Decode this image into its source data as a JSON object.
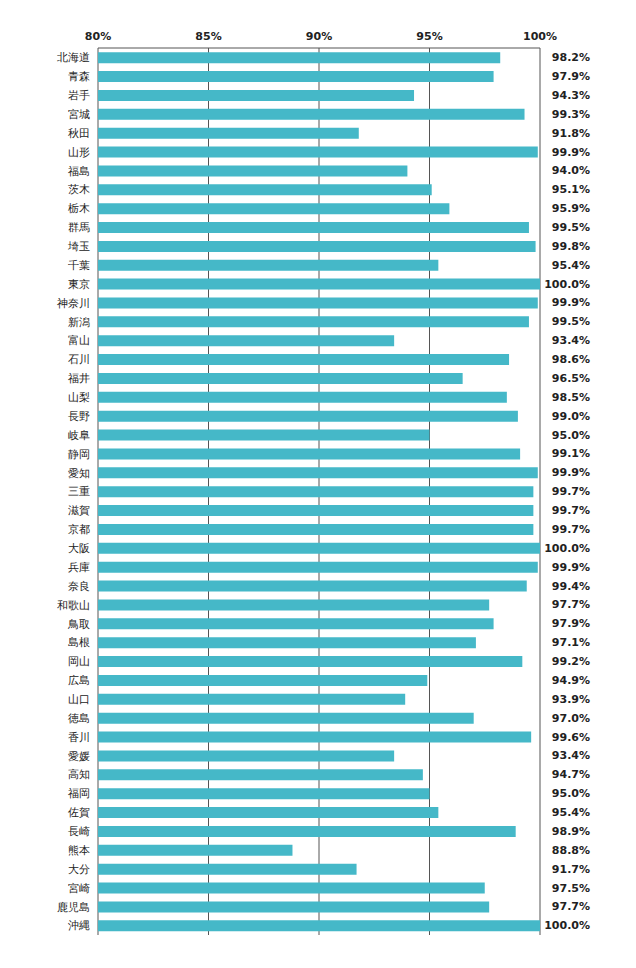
{
  "chart_data": {
    "type": "bar",
    "orientation": "horizontal",
    "categories": [
      "北海道",
      "青森",
      "岩手",
      "宮城",
      "秋田",
      "山形",
      "福島",
      "茨木",
      "栃木",
      "群馬",
      "埼玉",
      "千葉",
      "東京",
      "神奈川",
      "新潟",
      "富山",
      "石川",
      "福井",
      "山梨",
      "長野",
      "岐阜",
      "静岡",
      "愛知",
      "三重",
      "滋賀",
      "京都",
      "大阪",
      "兵庫",
      "奈良",
      "和歌山",
      "鳥取",
      "島根",
      "岡山",
      "広島",
      "山口",
      "徳島",
      "香川",
      "愛媛",
      "高知",
      "福岡",
      "佐賀",
      "長崎",
      "熊本",
      "大分",
      "宮崎",
      "鹿児島",
      "沖縄"
    ],
    "values": [
      98.2,
      97.9,
      94.3,
      99.3,
      91.8,
      99.9,
      94.0,
      95.1,
      95.9,
      99.5,
      99.8,
      95.4,
      100.0,
      99.9,
      99.5,
      93.4,
      98.6,
      96.5,
      98.5,
      99.0,
      95.0,
      99.1,
      99.9,
      99.7,
      99.7,
      99.7,
      100.0,
      99.9,
      99.4,
      97.7,
      97.9,
      97.1,
      99.2,
      94.9,
      93.9,
      97.0,
      99.6,
      93.4,
      94.7,
      95.0,
      95.4,
      98.9,
      88.8,
      91.7,
      97.5,
      97.7,
      100.0
    ],
    "value_labels": [
      "98.2%",
      "97.9%",
      "94.3%",
      "99.3%",
      "91.8%",
      "99.9%",
      "94.0%",
      "95.1%",
      "95.9%",
      "99.5%",
      "99.8%",
      "95.4%",
      "100.0%",
      "99.9%",
      "99.5%",
      "93.4%",
      "98.6%",
      "96.5%",
      "98.5%",
      "99.0%",
      "95.0%",
      "99.1%",
      "99.9%",
      "99.7%",
      "99.7%",
      "99.7%",
      "100.0%",
      "99.9%",
      "99.4%",
      "97.7%",
      "97.9%",
      "97.1%",
      "99.2%",
      "94.9%",
      "93.9%",
      "97.0%",
      "99.6%",
      "93.4%",
      "94.7%",
      "95.0%",
      "95.4%",
      "98.9%",
      "88.8%",
      "91.7%",
      "97.5%",
      "97.7%",
      "100.0%"
    ],
    "color": "#45b8c8",
    "xlim": [
      80,
      100
    ],
    "xticks": [
      {
        "value": 80,
        "label": "80%"
      },
      {
        "value": 85,
        "label": "85%"
      },
      {
        "value": 90,
        "label": "90%"
      },
      {
        "value": 95,
        "label": "95%"
      },
      {
        "value": 100,
        "label": "100%"
      }
    ],
    "grid": true,
    "data_labels": true
  }
}
